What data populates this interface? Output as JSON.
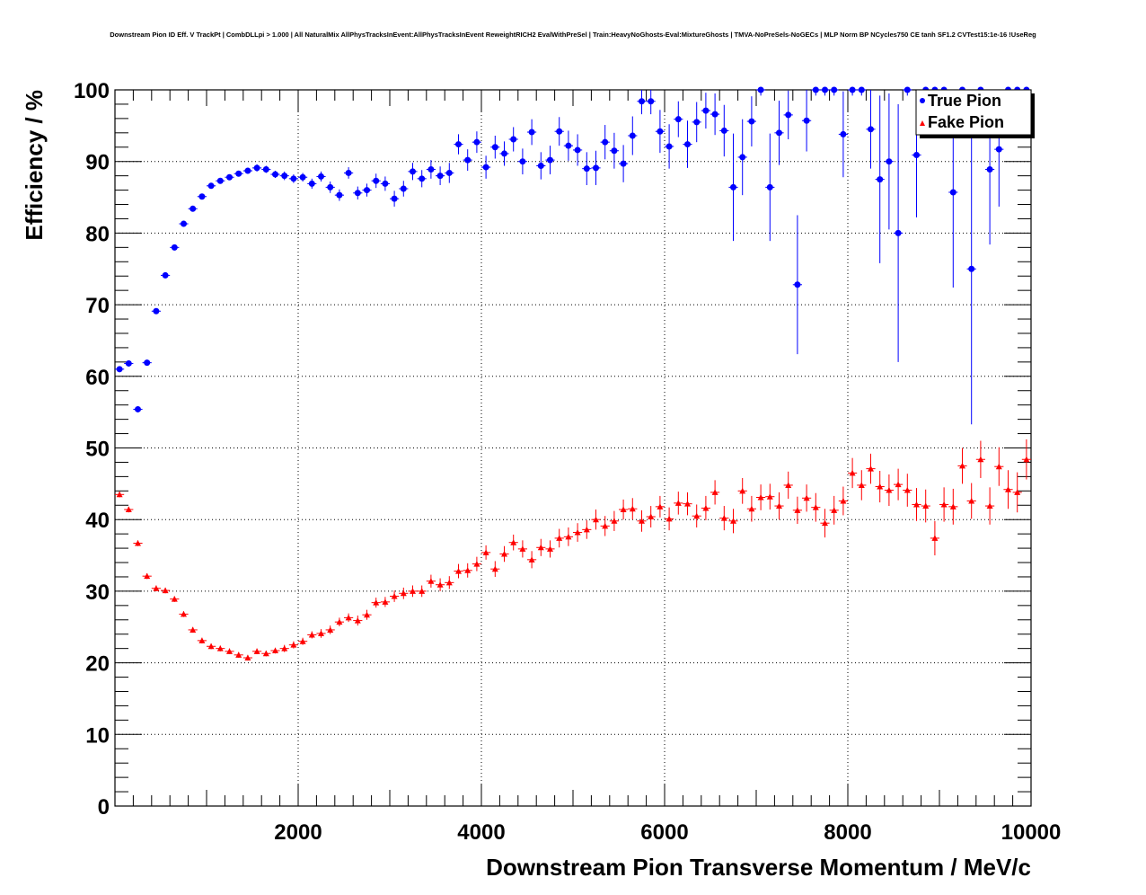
{
  "title": "Downstream Pion ID Eff. V TrackPt | CombDLLpi > 1.000 | All NaturalMix AllPhysTracksInEvent:AllPhysTracksInEvent ReweightRICH2 EvalWithPreSel | Train:HeavyNoGhosts-Eval:MixtureGhosts | TMVA-NoPreSels-NoGECs | MLP Norm BP NCycles750 CE tanh SF1.2 CVTest15:1e-16 !UseReg",
  "colors": {
    "true_pion": "#0000ff",
    "fake_pion": "#ff0000",
    "axis": "#000000",
    "grid": "#000000"
  },
  "chart_data": {
    "type": "scatter",
    "title": "Downstream Pion ID Eff. V TrackPt | CombDLLpi > 1.000 | All NaturalMix AllPhysTracksInEvent:AllPhysTracksInEvent ReweightRICH2 EvalWithPreSel | Train:HeavyNoGhosts-Eval:MixtureGhosts | TMVA-NoPreSels-NoGECs | MLP Norm BP NCycles750 CE tanh SF1.2 CVTest15:1e-16 !UseReg",
    "xlabel": "Downstream Pion Transverse Momentum / MeV/c",
    "ylabel": "Efficiency / %",
    "xlim": [
      0,
      10000
    ],
    "ylim": [
      0,
      100
    ],
    "x_ticks": [
      "2000",
      "4000",
      "6000",
      "8000",
      "10000"
    ],
    "y_ticks": [
      "0",
      "10",
      "20",
      "30",
      "40",
      "50",
      "60",
      "70",
      "80",
      "90",
      "100"
    ],
    "grid": true,
    "legend_position": "top-right",
    "series": [
      {
        "name": "True Pion",
        "marker": "circle",
        "color": "#0000ff",
        "points": [
          [
            50,
            61.0,
            0.4
          ],
          [
            150,
            61.8,
            0.4
          ],
          [
            250,
            55.4,
            0.4
          ],
          [
            350,
            61.9,
            0.4
          ],
          [
            450,
            69.1,
            0.4
          ],
          [
            550,
            74.1,
            0.4
          ],
          [
            650,
            78.0,
            0.4
          ],
          [
            750,
            81.3,
            0.4
          ],
          [
            850,
            83.4,
            0.4
          ],
          [
            950,
            85.1,
            0.4
          ],
          [
            1050,
            86.6,
            0.4
          ],
          [
            1150,
            87.3,
            0.4
          ],
          [
            1250,
            87.8,
            0.4
          ],
          [
            1350,
            88.3,
            0.4
          ],
          [
            1450,
            88.7,
            0.4
          ],
          [
            1550,
            89.1,
            0.5
          ],
          [
            1650,
            88.9,
            0.5
          ],
          [
            1750,
            88.2,
            0.5
          ],
          [
            1850,
            88.0,
            0.6
          ],
          [
            1950,
            87.6,
            0.6
          ],
          [
            2050,
            87.8,
            0.6
          ],
          [
            2150,
            86.9,
            0.7
          ],
          [
            2250,
            87.9,
            0.7
          ],
          [
            2350,
            86.4,
            0.8
          ],
          [
            2450,
            85.3,
            0.8
          ],
          [
            2550,
            88.4,
            0.8
          ],
          [
            2650,
            85.6,
            0.9
          ],
          [
            2750,
            86.0,
            0.9
          ],
          [
            2850,
            87.3,
            1.0
          ],
          [
            2950,
            86.9,
            1.0
          ],
          [
            3050,
            84.8,
            1.1
          ],
          [
            3150,
            86.2,
            1.1
          ],
          [
            3250,
            88.6,
            1.2
          ],
          [
            3350,
            87.6,
            1.2
          ],
          [
            3450,
            88.9,
            1.3
          ],
          [
            3550,
            88.0,
            1.3
          ],
          [
            3650,
            88.4,
            1.4
          ],
          [
            3750,
            92.4,
            1.4
          ],
          [
            3850,
            90.2,
            1.5
          ],
          [
            3950,
            92.7,
            1.5
          ],
          [
            4050,
            89.2,
            1.6
          ],
          [
            4150,
            92.0,
            1.6
          ],
          [
            4250,
            91.1,
            1.7
          ],
          [
            4350,
            93.1,
            1.7
          ],
          [
            4450,
            90.0,
            1.8
          ],
          [
            4550,
            94.1,
            1.8
          ],
          [
            4650,
            89.4,
            1.9
          ],
          [
            4750,
            90.2,
            2.0
          ],
          [
            4850,
            94.2,
            2.0
          ],
          [
            4950,
            92.2,
            2.1
          ],
          [
            5050,
            91.6,
            2.2
          ],
          [
            5150,
            89.0,
            2.3
          ],
          [
            5250,
            89.1,
            2.4
          ],
          [
            5350,
            92.7,
            2.4
          ],
          [
            5450,
            91.5,
            2.5
          ],
          [
            5550,
            89.7,
            2.6
          ],
          [
            5650,
            93.6,
            2.7
          ],
          [
            5750,
            98.4,
            1.8
          ],
          [
            5850,
            98.4,
            1.8
          ],
          [
            5950,
            94.2,
            3.0
          ],
          [
            6050,
            92.1,
            3.1
          ],
          [
            6150,
            95.9,
            2.5
          ],
          [
            6250,
            92.4,
            3.3
          ],
          [
            6350,
            95.5,
            2.8
          ],
          [
            6450,
            97.1,
            2.5
          ],
          [
            6550,
            96.6,
            2.9
          ],
          [
            6650,
            94.3,
            3.6
          ],
          [
            6750,
            86.4,
            7.5
          ],
          [
            6850,
            90.6,
            5.3
          ],
          [
            6950,
            95.6,
            3.5
          ],
          [
            7050,
            100,
            0.8
          ],
          [
            7150,
            86.4,
            7.5
          ],
          [
            7250,
            94.0,
            4.5
          ],
          [
            7350,
            96.5,
            3.4
          ],
          [
            7450,
            72.8,
            9.7
          ],
          [
            7550,
            95.7,
            4.3
          ],
          [
            7650,
            100,
            0.8
          ],
          [
            7750,
            100,
            0.8
          ],
          [
            7850,
            100,
            0.8
          ],
          [
            7950,
            93.8,
            6.0
          ],
          [
            8050,
            100,
            0.8
          ],
          [
            8150,
            100,
            0.8
          ],
          [
            8250,
            94.5,
            5.5
          ],
          [
            8350,
            87.5,
            11.7
          ],
          [
            8450,
            90.0,
            9.5
          ],
          [
            8550,
            80.0,
            18.0
          ],
          [
            8650,
            100,
            0.8
          ],
          [
            8750,
            90.9,
            8.7
          ],
          [
            8850,
            100,
            0.8
          ],
          [
            8950,
            100,
            0.8
          ],
          [
            9050,
            100,
            0.8
          ],
          [
            9150,
            85.7,
            13.3
          ],
          [
            9250,
            100,
            0.8
          ],
          [
            9350,
            75.0,
            21.7
          ],
          [
            9450,
            100,
            0.8
          ],
          [
            9550,
            88.9,
            10.5
          ],
          [
            9650,
            91.7,
            8.0
          ],
          [
            9750,
            100,
            0.8
          ],
          [
            9850,
            100,
            0.8
          ],
          [
            9950,
            100,
            0.8
          ]
        ]
      },
      {
        "name": "Fake Pion",
        "marker": "triangle",
        "color": "#ff0000",
        "points": [
          [
            50,
            43.5,
            0.4
          ],
          [
            150,
            41.4,
            0.4
          ],
          [
            250,
            36.7,
            0.4
          ],
          [
            350,
            32.1,
            0.4
          ],
          [
            450,
            30.4,
            0.4
          ],
          [
            550,
            30.1,
            0.4
          ],
          [
            650,
            28.9,
            0.4
          ],
          [
            750,
            26.8,
            0.4
          ],
          [
            850,
            24.6,
            0.4
          ],
          [
            950,
            23.1,
            0.4
          ],
          [
            1050,
            22.3,
            0.4
          ],
          [
            1150,
            22.0,
            0.4
          ],
          [
            1250,
            21.6,
            0.4
          ],
          [
            1350,
            21.1,
            0.4
          ],
          [
            1450,
            20.7,
            0.4
          ],
          [
            1550,
            21.6,
            0.4
          ],
          [
            1650,
            21.3,
            0.4
          ],
          [
            1750,
            21.7,
            0.4
          ],
          [
            1850,
            22.0,
            0.5
          ],
          [
            1950,
            22.5,
            0.5
          ],
          [
            2050,
            23.0,
            0.5
          ],
          [
            2150,
            23.9,
            0.5
          ],
          [
            2250,
            24.1,
            0.6
          ],
          [
            2350,
            24.6,
            0.6
          ],
          [
            2450,
            25.7,
            0.6
          ],
          [
            2550,
            26.3,
            0.6
          ],
          [
            2650,
            25.9,
            0.7
          ],
          [
            2750,
            26.7,
            0.7
          ],
          [
            2850,
            28.4,
            0.7
          ],
          [
            2950,
            28.5,
            0.7
          ],
          [
            3050,
            29.3,
            0.8
          ],
          [
            3150,
            29.7,
            0.8
          ],
          [
            3250,
            30.0,
            0.8
          ],
          [
            3350,
            30.0,
            0.8
          ],
          [
            3450,
            31.4,
            0.9
          ],
          [
            3550,
            30.9,
            0.9
          ],
          [
            3650,
            31.2,
            0.9
          ],
          [
            3750,
            32.8,
            1.0
          ],
          [
            3850,
            32.9,
            1.0
          ],
          [
            3950,
            33.8,
            1.0
          ],
          [
            4050,
            35.4,
            1.0
          ],
          [
            4150,
            33.1,
            1.1
          ],
          [
            4250,
            35.2,
            1.1
          ],
          [
            4350,
            36.8,
            1.1
          ],
          [
            4450,
            35.9,
            1.2
          ],
          [
            4550,
            34.4,
            1.2
          ],
          [
            4650,
            36.1,
            1.2
          ],
          [
            4750,
            35.9,
            1.2
          ],
          [
            4850,
            37.4,
            1.3
          ],
          [
            4950,
            37.6,
            1.3
          ],
          [
            5050,
            38.2,
            1.3
          ],
          [
            5150,
            38.6,
            1.3
          ],
          [
            5250,
            40.0,
            1.4
          ],
          [
            5350,
            39.1,
            1.4
          ],
          [
            5450,
            39.8,
            1.4
          ],
          [
            5550,
            41.4,
            1.4
          ],
          [
            5650,
            41.5,
            1.5
          ],
          [
            5750,
            39.8,
            1.5
          ],
          [
            5850,
            40.4,
            1.5
          ],
          [
            5950,
            41.8,
            1.5
          ],
          [
            6050,
            40.1,
            1.6
          ],
          [
            6150,
            42.3,
            1.6
          ],
          [
            6250,
            42.2,
            1.6
          ],
          [
            6350,
            40.5,
            1.6
          ],
          [
            6450,
            41.6,
            1.7
          ],
          [
            6550,
            43.8,
            1.7
          ],
          [
            6650,
            40.2,
            1.7
          ],
          [
            6750,
            39.8,
            1.7
          ],
          [
            6850,
            44.0,
            1.8
          ],
          [
            6950,
            41.5,
            1.8
          ],
          [
            7050,
            43.1,
            1.8
          ],
          [
            7150,
            43.2,
            1.8
          ],
          [
            7250,
            41.9,
            1.9
          ],
          [
            7350,
            44.8,
            1.9
          ],
          [
            7450,
            41.3,
            1.9
          ],
          [
            7550,
            43.0,
            1.9
          ],
          [
            7650,
            41.7,
            2.0
          ],
          [
            7750,
            39.5,
            2.0
          ],
          [
            7850,
            41.3,
            2.0
          ],
          [
            7950,
            42.6,
            2.0
          ],
          [
            8050,
            46.5,
            2.1
          ],
          [
            8150,
            44.8,
            2.1
          ],
          [
            8250,
            47.1,
            2.1
          ],
          [
            8350,
            44.6,
            2.2
          ],
          [
            8450,
            44.1,
            2.2
          ],
          [
            8550,
            44.9,
            2.2
          ],
          [
            8650,
            44.1,
            2.3
          ],
          [
            8750,
            42.1,
            2.3
          ],
          [
            8850,
            41.9,
            2.3
          ],
          [
            8950,
            37.4,
            2.4
          ],
          [
            9050,
            42.1,
            2.4
          ],
          [
            9150,
            41.8,
            2.5
          ],
          [
            9250,
            47.5,
            2.5
          ],
          [
            9350,
            42.6,
            2.5
          ],
          [
            9450,
            48.4,
            2.6
          ],
          [
            9550,
            41.9,
            2.6
          ],
          [
            9650,
            47.4,
            2.7
          ],
          [
            9750,
            44.2,
            2.7
          ],
          [
            9850,
            43.8,
            2.8
          ],
          [
            9950,
            48.4,
            2.8
          ]
        ]
      }
    ]
  }
}
